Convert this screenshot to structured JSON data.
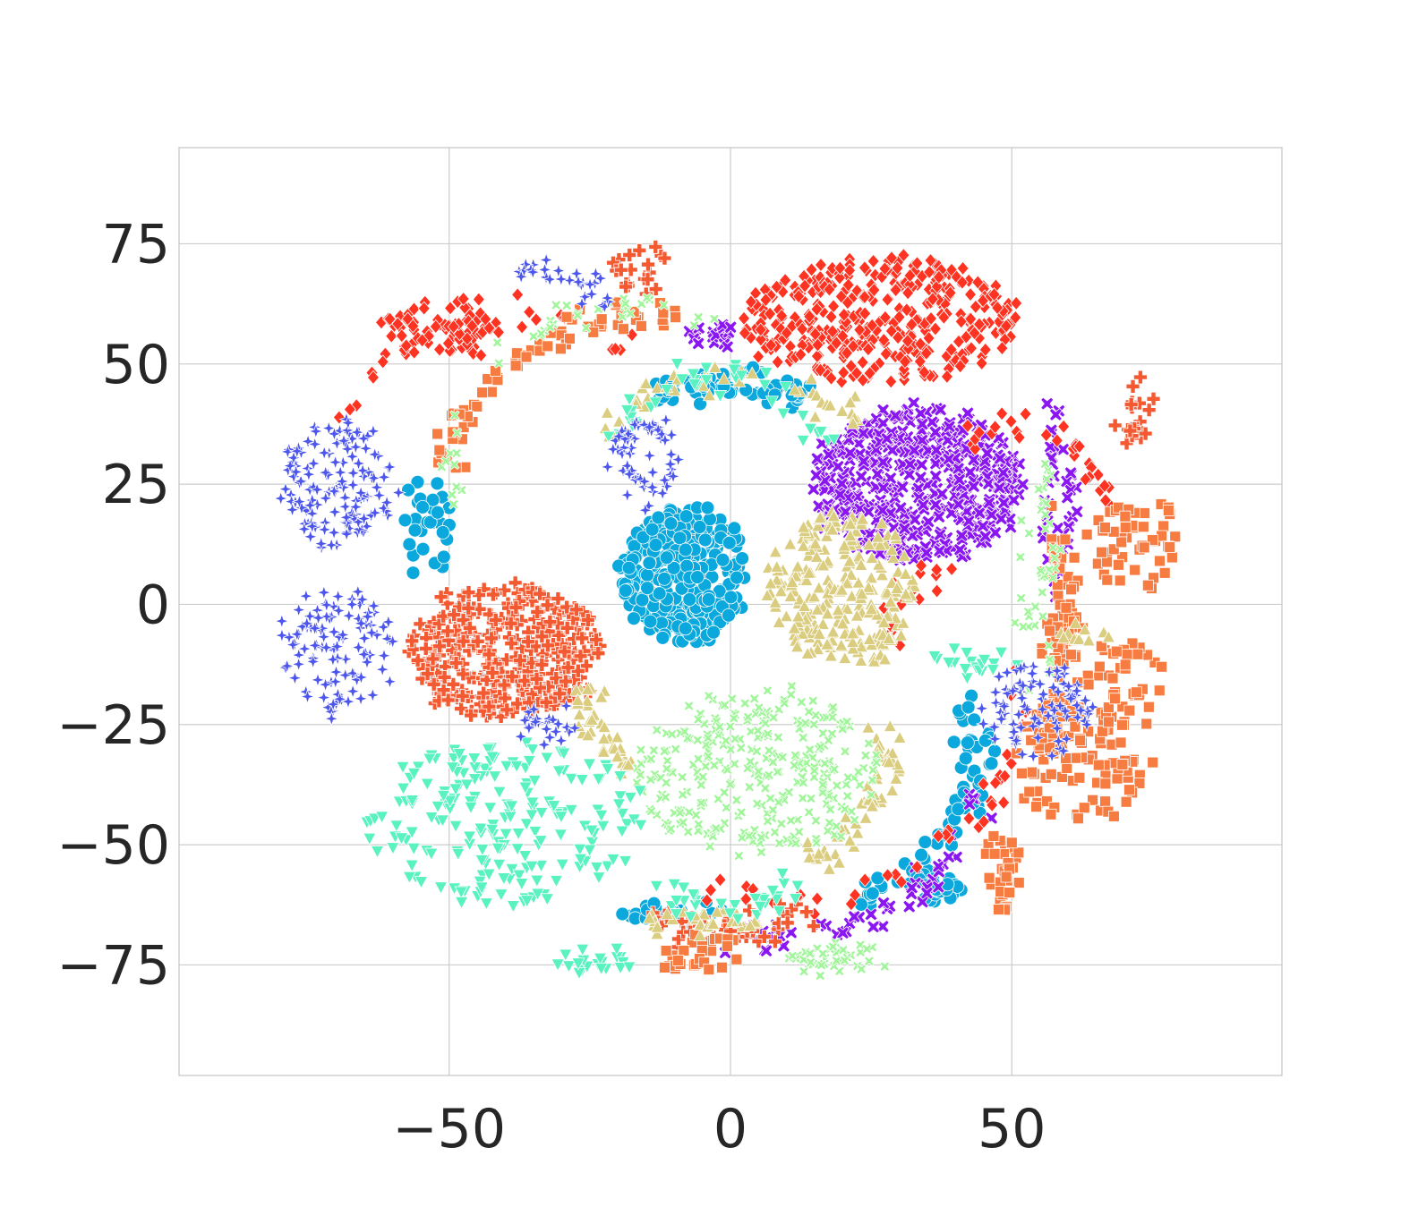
{
  "chart_data": {
    "type": "scatter",
    "title": "",
    "xlabel": "",
    "ylabel": "",
    "xlim": [
      -98,
      98
    ],
    "ylim": [
      -98,
      95
    ],
    "xticks": [
      -50,
      0,
      50
    ],
    "xtick_labels": [
      "−50",
      "0",
      "50"
    ],
    "yticks": [
      75,
      50,
      25,
      0,
      -25,
      -50,
      -75
    ],
    "ytick_labels": [
      "75",
      "50",
      "25",
      "0",
      "−25",
      "−50",
      "−75"
    ],
    "grid": true,
    "legend": "none",
    "clusters": [
      {
        "marker": "circle",
        "color": "#0aa8dc",
        "shape": "blob",
        "cx": -8,
        "cy": 6,
        "rx": 11,
        "ry": 14,
        "n": 320
      },
      {
        "marker": "circle",
        "color": "#0aa8dc",
        "shape": "arc",
        "cx": 0,
        "cy": 20,
        "r": 26,
        "a0": 120,
        "a1": 60,
        "n": 60
      },
      {
        "marker": "circle",
        "color": "#0aa8dc",
        "shape": "arc",
        "cx": 10,
        "cy": -30,
        "r": 34,
        "a0": 20,
        "a1": -70,
        "n": 60
      },
      {
        "marker": "circle",
        "color": "#0aa8dc",
        "shape": "blob",
        "cx": 36,
        "cy": -59,
        "rx": 5,
        "ry": 3,
        "n": 30
      },
      {
        "marker": "circle",
        "color": "#0aa8dc",
        "shape": "blob",
        "cx": -54,
        "cy": 16,
        "rx": 4,
        "ry": 10,
        "n": 30
      },
      {
        "marker": "circle",
        "color": "#0aa8dc",
        "shape": "blob",
        "cx": -10,
        "cy": -64,
        "rx": 9,
        "ry": 2,
        "n": 20
      },
      {
        "marker": "x",
        "color": "#8a17f2",
        "shape": "blob",
        "cx": 33,
        "cy": 25,
        "rx": 19,
        "ry": 16,
        "n": 480
      },
      {
        "marker": "x",
        "color": "#8a17f2",
        "shape": "blob",
        "cx": -3,
        "cy": 56,
        "rx": 5,
        "ry": 2,
        "n": 20
      },
      {
        "marker": "x",
        "color": "#8a17f2",
        "shape": "arc",
        "cx": 5,
        "cy": -30,
        "r": 40,
        "a0": -10,
        "a1": -100,
        "n": 50
      },
      {
        "marker": "x",
        "color": "#8a17f2",
        "shape": "blob",
        "cx": 58,
        "cy": 22,
        "rx": 3,
        "ry": 22,
        "n": 40
      },
      {
        "marker": "diamond",
        "color": "#ff3322",
        "shape": "blob",
        "cx": 27,
        "cy": 59,
        "rx": 25,
        "ry": 13,
        "n": 380
      },
      {
        "marker": "diamond",
        "color": "#ff3322",
        "shape": "blob",
        "cx": -52,
        "cy": 57,
        "rx": 10,
        "ry": 7,
        "n": 70
      },
      {
        "marker": "diamond",
        "color": "#ff3322",
        "shape": "arc",
        "cx": 10,
        "cy": -20,
        "r": 42,
        "a0": 10,
        "a1": -110,
        "n": 40
      },
      {
        "marker": "diamond",
        "color": "#ff3322",
        "shape": "arc",
        "cx": 50,
        "cy": 20,
        "r": 16,
        "a0": 0,
        "a1": 120,
        "n": 30
      },
      {
        "marker": "diamond",
        "color": "#ff3322",
        "shape": "arc",
        "cx": 40,
        "cy": -5,
        "r": 12,
        "a0": 90,
        "a1": 200,
        "n": 20
      },
      {
        "marker": "diamond",
        "color": "#ff3322",
        "shape": "arc",
        "cx": -40,
        "cy": 30,
        "r": 30,
        "a0": 45,
        "a1": 170,
        "n": 30
      },
      {
        "marker": "plus",
        "color": "#f45a32",
        "shape": "blob",
        "cx": -40,
        "cy": -10,
        "rx": 17,
        "ry": 14,
        "n": 360
      },
      {
        "marker": "plus",
        "color": "#f45a32",
        "shape": "blob",
        "cx": -16,
        "cy": 70,
        "rx": 6,
        "ry": 5,
        "n": 20
      },
      {
        "marker": "plus",
        "color": "#f45a32",
        "shape": "blob",
        "cx": 72,
        "cy": 40,
        "rx": 3,
        "ry": 7,
        "n": 20
      },
      {
        "marker": "plus",
        "color": "#f45a32",
        "shape": "arc",
        "cx": 0,
        "cy": -40,
        "r": 28,
        "a0": -60,
        "a1": -120,
        "n": 40
      },
      {
        "marker": "square",
        "color": "#f77c41",
        "shape": "blob",
        "cx": 62,
        "cy": -33,
        "rx": 12,
        "ry": 14,
        "n": 90
      },
      {
        "marker": "square",
        "color": "#f77c41",
        "shape": "blob",
        "cx": 72,
        "cy": 13,
        "rx": 8,
        "ry": 10,
        "n": 50
      },
      {
        "marker": "square",
        "color": "#f77c41",
        "shape": "blob",
        "cx": 70,
        "cy": -17,
        "rx": 7,
        "ry": 9,
        "n": 40
      },
      {
        "marker": "square",
        "color": "#f77c41",
        "shape": "blob",
        "cx": 48,
        "cy": -56,
        "rx": 3,
        "ry": 8,
        "n": 30
      },
      {
        "marker": "square",
        "color": "#f77c41",
        "shape": "blob",
        "cx": -6,
        "cy": -73,
        "rx": 8,
        "ry": 4,
        "n": 30
      },
      {
        "marker": "square",
        "color": "#f77c41",
        "shape": "arc",
        "cx": -15,
        "cy": 25,
        "r": 35,
        "a0": 80,
        "a1": 175,
        "n": 70
      },
      {
        "marker": "square",
        "color": "#f77c41",
        "shape": "arc",
        "cx": 20,
        "cy": -10,
        "r": 40,
        "a0": -30,
        "a1": 15,
        "n": 40
      },
      {
        "marker": "square",
        "color": "#f77c41",
        "shape": "blob",
        "cx": 59,
        "cy": 2,
        "rx": 5,
        "ry": 20,
        "n": 40
      },
      {
        "marker": "triangle-up",
        "color": "#dbcd80",
        "shape": "blob",
        "cx": 20,
        "cy": 3,
        "rx": 13,
        "ry": 16,
        "n": 260
      },
      {
        "marker": "triangle-up",
        "color": "#dbcd80",
        "shape": "arc",
        "cx": 0,
        "cy": 22,
        "r": 26,
        "a0": 30,
        "a1": 150,
        "n": 40
      },
      {
        "marker": "triangle-up",
        "color": "#dbcd80",
        "shape": "arc",
        "cx": 0,
        "cy": -15,
        "r": 26,
        "a0": 185,
        "a1": 230,
        "n": 40
      },
      {
        "marker": "triangle-up",
        "color": "#dbcd80",
        "shape": "arc",
        "cx": 0,
        "cy": -30,
        "r": 28,
        "a0": 10,
        "a1": -60,
        "n": 50
      },
      {
        "marker": "triangle-up",
        "color": "#dbcd80",
        "shape": "blob",
        "cx": -5,
        "cy": -66,
        "rx": 10,
        "ry": 2,
        "n": 30
      },
      {
        "marker": "triangle-up",
        "color": "#dbcd80",
        "shape": "blob",
        "cx": 62,
        "cy": -6,
        "rx": 5,
        "ry": 2,
        "n": 12
      },
      {
        "marker": "x-small",
        "color": "#a1f59a",
        "shape": "blob",
        "cx": 5,
        "cy": -35,
        "rx": 22,
        "ry": 18,
        "n": 300
      },
      {
        "marker": "x-small",
        "color": "#a1f59a",
        "shape": "blob",
        "cx": 19,
        "cy": -74,
        "rx": 9,
        "ry": 3,
        "n": 40
      },
      {
        "marker": "x-small",
        "color": "#a1f59a",
        "shape": "arc",
        "cx": -18,
        "cy": 30,
        "r": 32,
        "a0": 60,
        "a1": 200,
        "n": 40
      },
      {
        "marker": "x-small",
        "color": "#a1f59a",
        "shape": "blob",
        "cx": 55,
        "cy": 5,
        "rx": 4,
        "ry": 25,
        "n": 40
      },
      {
        "marker": "triangle-down",
        "color": "#59f2c0",
        "shape": "blob",
        "cx": -40,
        "cy": -45,
        "rx": 25,
        "ry": 17,
        "n": 200
      },
      {
        "marker": "triangle-down",
        "color": "#59f2c0",
        "shape": "blob",
        "cx": -25,
        "cy": -74,
        "rx": 8,
        "ry": 3,
        "n": 20
      },
      {
        "marker": "triangle-down",
        "color": "#59f2c0",
        "shape": "arc",
        "cx": -2,
        "cy": 30,
        "r": 18,
        "a0": 10,
        "a1": 170,
        "n": 40
      },
      {
        "marker": "triangle-down",
        "color": "#59f2c0",
        "shape": "arc",
        "cx": 0,
        "cy": -45,
        "r": 18,
        "a0": -45,
        "a1": -135,
        "n": 30
      },
      {
        "marker": "triangle-down",
        "color": "#59f2c0",
        "shape": "blob",
        "cx": 43,
        "cy": -12,
        "rx": 8,
        "ry": 3,
        "n": 20
      },
      {
        "marker": "star",
        "color": "#4c55ec",
        "shape": "blob",
        "cx": -70,
        "cy": 25,
        "rx": 10,
        "ry": 13,
        "n": 140
      },
      {
        "marker": "star",
        "color": "#4c55ec",
        "shape": "blob",
        "cx": -70,
        "cy": -10,
        "rx": 10,
        "ry": 13,
        "n": 110
      },
      {
        "marker": "star",
        "color": "#4c55ec",
        "shape": "blob",
        "cx": 55,
        "cy": -22,
        "rx": 10,
        "ry": 10,
        "n": 90
      },
      {
        "marker": "star",
        "color": "#4c55ec",
        "shape": "blob",
        "cx": -15,
        "cy": 30,
        "rx": 6,
        "ry": 10,
        "n": 60
      },
      {
        "marker": "star",
        "color": "#4c55ec",
        "shape": "arc",
        "cx": -38,
        "cy": 50,
        "r": 20,
        "a0": 30,
        "a1": 90,
        "n": 30
      },
      {
        "marker": "star",
        "color": "#4c55ec",
        "shape": "blob",
        "cx": -33,
        "cy": -25,
        "rx": 5,
        "ry": 4,
        "n": 25
      }
    ]
  }
}
